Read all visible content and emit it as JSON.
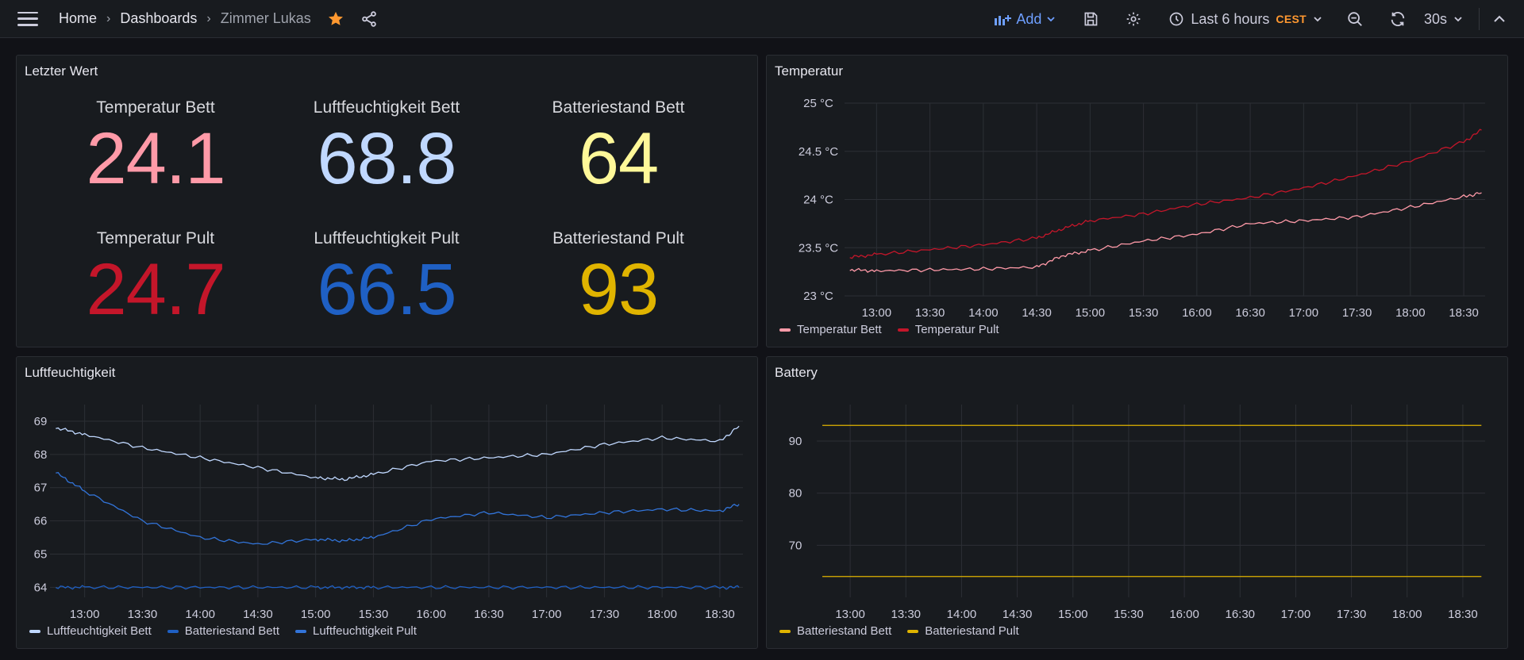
{
  "topbar": {
    "breadcrumb": [
      "Home",
      "Dashboards",
      "Zimmer Lukas"
    ],
    "add_label": "Add",
    "time_range": "Last 6 hours",
    "timezone": "CEST",
    "refresh_interval": "30s"
  },
  "stat_panel": {
    "title": "Letzter Wert",
    "stats": [
      {
        "label": "Temperatur Bett",
        "value": "24.1",
        "color": "#ff9aa8"
      },
      {
        "label": "Luftfeuchtigkeit Bett",
        "value": "68.8",
        "color": "#c0d8ff"
      },
      {
        "label": "Batteriestand Bett",
        "value": "64",
        "color": "#fff899"
      },
      {
        "label": "Temperatur Pult",
        "value": "24.7",
        "color": "#c4162a"
      },
      {
        "label": "Luftfeuchtigkeit Pult",
        "value": "66.5",
        "color": "#1f60c4"
      },
      {
        "label": "Batteriestand Pult",
        "value": "93",
        "color": "#e0b400"
      }
    ]
  },
  "time_ticks": [
    "13:00",
    "13:30",
    "14:00",
    "14:30",
    "15:00",
    "15:30",
    "16:00",
    "16:30",
    "17:00",
    "17:30",
    "18:00",
    "18:30"
  ],
  "chart_data": [
    {
      "type": "line",
      "title": "Temperatur",
      "x_range": [
        "12:42",
        "18:42"
      ],
      "ylim": [
        23,
        25
      ],
      "yticks": [
        "23 °C",
        "23.5 °C",
        "24 °C",
        "24.5 °C",
        "25 °C"
      ],
      "ytick_values": [
        23,
        23.5,
        24,
        24.5,
        25
      ],
      "x": [
        "12:45",
        "13:00",
        "13:30",
        "14:00",
        "14:30",
        "14:45",
        "15:00",
        "15:30",
        "16:00",
        "16:30",
        "17:00",
        "17:30",
        "18:00",
        "18:30",
        "18:40"
      ],
      "series": [
        {
          "name": "Temperatur Bett",
          "color": "#ff9aa8",
          "values": [
            23.27,
            23.26,
            23.27,
            23.28,
            23.3,
            23.42,
            23.47,
            23.57,
            23.64,
            23.75,
            23.78,
            23.82,
            23.92,
            24.03,
            24.07
          ]
        },
        {
          "name": "Temperatur Pult",
          "color": "#c4162a",
          "values": [
            23.4,
            23.43,
            23.48,
            23.53,
            23.6,
            23.7,
            23.78,
            23.85,
            23.95,
            24.02,
            24.12,
            24.25,
            24.4,
            24.6,
            24.72
          ]
        }
      ],
      "legend": "bottom-left",
      "grid": true
    },
    {
      "type": "line",
      "title": "Luftfeuchtigkeit",
      "x_range": [
        "12:42",
        "18:42"
      ],
      "ylim": [
        63.7,
        69.5
      ],
      "yticks": [
        "64",
        "65",
        "66",
        "67",
        "68",
        "69"
      ],
      "ytick_values": [
        64,
        65,
        66,
        67,
        68,
        69
      ],
      "x": [
        "12:45",
        "13:00",
        "13:30",
        "14:00",
        "14:30",
        "15:00",
        "15:15",
        "15:30",
        "16:00",
        "16:30",
        "17:00",
        "17:30",
        "18:00",
        "18:30",
        "18:40"
      ],
      "series": [
        {
          "name": "Luftfeuchtigkeit Bett",
          "color": "#c0d8ff",
          "values": [
            68.8,
            68.6,
            68.2,
            67.9,
            67.6,
            67.3,
            67.25,
            67.4,
            67.8,
            67.9,
            68.0,
            68.3,
            68.5,
            68.4,
            68.85
          ]
        },
        {
          "name": "Batteriestand Bett",
          "color": "#1f60c4",
          "values": [
            64,
            64,
            64,
            64,
            64,
            64,
            64,
            64,
            64,
            64,
            64,
            64,
            64,
            64,
            64
          ]
        },
        {
          "name": "Luftfeuchtigkeit Pult",
          "color": "#3274d9",
          "values": [
            67.45,
            66.9,
            66.0,
            65.5,
            65.3,
            65.45,
            65.4,
            65.5,
            66.05,
            66.25,
            66.1,
            66.25,
            66.35,
            66.3,
            66.5
          ]
        }
      ],
      "legend": "bottom-left",
      "grid": true
    },
    {
      "type": "line",
      "title": "Battery",
      "x_range": [
        "12:42",
        "18:42"
      ],
      "ylim": [
        60,
        97
      ],
      "yticks": [
        "70",
        "80",
        "90"
      ],
      "ytick_values": [
        70,
        80,
        90
      ],
      "x": [
        "12:45",
        "18:40"
      ],
      "series": [
        {
          "name": "Batteriestand Bett",
          "color": "#e0b400",
          "values": [
            64,
            64
          ]
        },
        {
          "name": "Batteriestand Pult",
          "color": "#e0b400",
          "values": [
            93,
            93
          ]
        }
      ],
      "legend": "bottom-left",
      "grid": true
    }
  ]
}
